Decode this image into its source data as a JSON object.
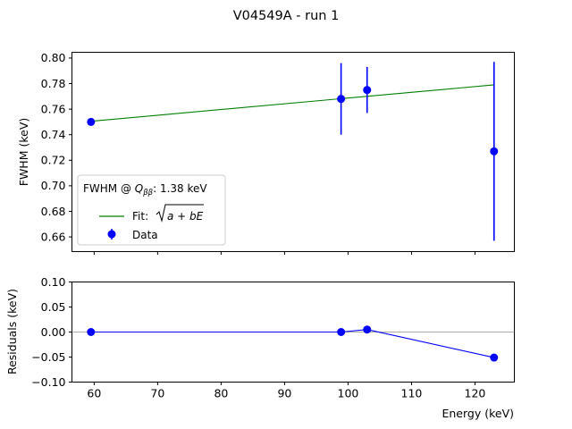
{
  "figure": {
    "title": "V04549A - run 1"
  },
  "chart_data": [
    {
      "type": "scatter",
      "xlim": [
        56.5,
        126.2
      ],
      "ylim": [
        0.6485,
        0.8045
      ],
      "ylabel": "FWHM (keV)",
      "yticks": [
        0.66,
        0.68,
        0.7,
        0.72,
        0.74,
        0.76,
        0.78,
        0.8
      ],
      "ytick_labels": [
        "0.66",
        "0.68",
        "0.70",
        "0.72",
        "0.74",
        "0.76",
        "0.78",
        "0.80"
      ],
      "xticks": [
        60,
        70,
        80,
        90,
        100,
        110,
        120
      ],
      "series": [
        {
          "name": "Data",
          "kind": "errorbar",
          "color": "#0000ff",
          "x": [
            59.5,
            98.9,
            103.0,
            123.0
          ],
          "y": [
            0.75,
            0.768,
            0.775,
            0.727
          ],
          "yerr": [
            0.002,
            0.028,
            0.018,
            0.07
          ]
        },
        {
          "name": "Fit: √(a + bE)",
          "kind": "line",
          "color": "#008000",
          "x": [
            59.5,
            123.0
          ],
          "y": [
            0.7505,
            0.779
          ]
        }
      ],
      "legend": {
        "placement": "lower-left",
        "title": "FWHM @ ",
        "title_symbol": "Q",
        "title_subscript": "ββ",
        "title_value": ": 1.38 keV",
        "fit_label_prefix": "Fit: ",
        "fit_label_expr": "a + bE",
        "data_label": "Data"
      }
    },
    {
      "type": "line",
      "xlim": [
        56.5,
        126.2
      ],
      "ylim": [
        -0.1,
        0.1
      ],
      "xlabel": "Energy (keV)",
      "ylabel": "Residuals (keV)",
      "xticks": [
        60,
        70,
        80,
        90,
        100,
        110,
        120
      ],
      "xtick_labels": [
        "60",
        "70",
        "80",
        "90",
        "100",
        "110",
        "120"
      ],
      "yticks": [
        -0.1,
        -0.05,
        0.0,
        0.05,
        0.1
      ],
      "ytick_labels": [
        "−0.10",
        "−0.05",
        "0.00",
        "0.05",
        "0.10"
      ],
      "zero_line_color": "#aaaaaa",
      "series": [
        {
          "name": "Residuals",
          "color": "#0000ff",
          "x": [
            59.5,
            98.9,
            103.0,
            123.0
          ],
          "y": [
            0.0,
            0.0,
            0.005,
            -0.051
          ]
        }
      ]
    }
  ]
}
